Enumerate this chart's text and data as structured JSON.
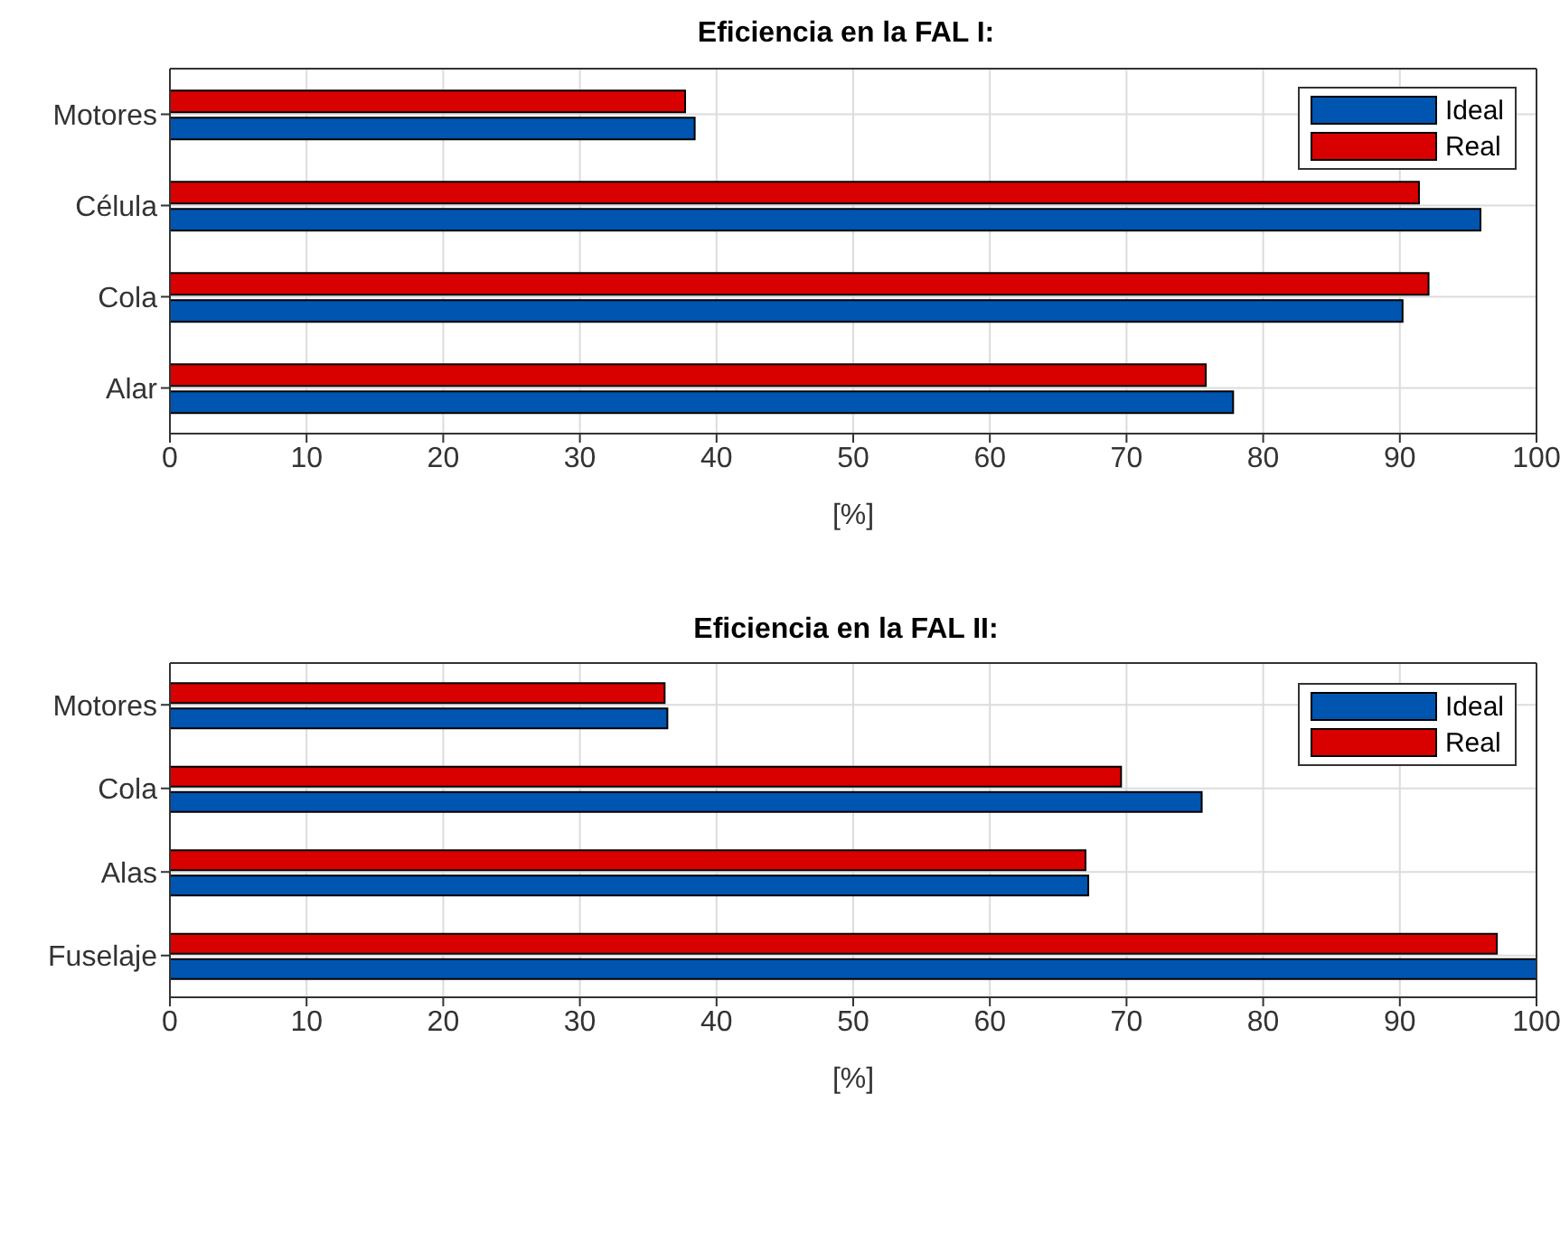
{
  "chart_data": [
    {
      "type": "bar",
      "orientation": "horizontal",
      "title": "Eficiencia en la FAL I:",
      "xlabel": "[%]",
      "categories": [
        "Motores",
        "Célula",
        "Cola",
        "Alar"
      ],
      "series": [
        {
          "name": "Ideal",
          "color": "#0055b0",
          "values": [
            38.4,
            95.9,
            90.2,
            77.8
          ]
        },
        {
          "name": "Real",
          "color": "#d90000",
          "values": [
            37.7,
            91.4,
            92.1,
            75.8
          ]
        }
      ],
      "xlim": [
        0,
        100
      ],
      "xticks": [
        0,
        10,
        20,
        30,
        40,
        50,
        60,
        70,
        80,
        90,
        100
      ],
      "grid": true,
      "legend": "top right"
    },
    {
      "type": "bar",
      "orientation": "horizontal",
      "title": "Eficiencia en la FAL II:",
      "xlabel": "[%]",
      "categories": [
        "Motores",
        "Cola",
        "Alas",
        "Fuselaje"
      ],
      "series": [
        {
          "name": "Ideal",
          "color": "#0055b0",
          "values": [
            36.4,
            75.5,
            67.2,
            100
          ]
        },
        {
          "name": "Real",
          "color": "#d90000",
          "values": [
            36.2,
            69.6,
            67.0,
            97.1
          ]
        }
      ],
      "xlim": [
        0,
        100
      ],
      "xticks": [
        0,
        10,
        20,
        30,
        40,
        50,
        60,
        70,
        80,
        90,
        100
      ],
      "grid": true,
      "legend": "top right"
    }
  ]
}
